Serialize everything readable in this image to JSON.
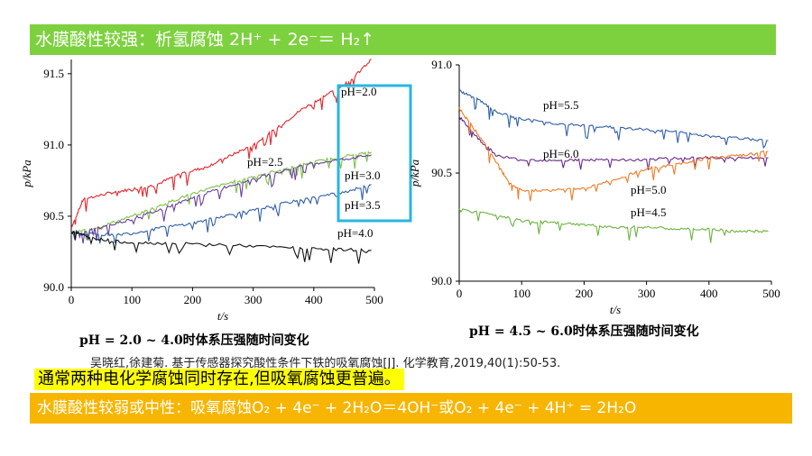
{
  "header": {
    "text": "水膜酸性较强：析氢腐蚀 2H⁺ + 2e⁻＝ H₂↑"
  },
  "citation": "吴晓红,徐建菊. 基于传感器探究酸性条件下铁的吸氧腐蚀[J]. 化学教育,2019,40(1):50-53.",
  "highlight": "通常两种电化学腐蚀同时存在,但吸氧腐蚀更普遍。",
  "footer": {
    "text": "水膜酸性较弱或中性：吸氧腐蚀O₂ + 4e⁻ + 2H₂O＝4OH⁻或O₂ + 4e⁻ + 4H⁺ = 2H₂O"
  },
  "colors": {
    "header_bg": "#7dd13f",
    "footer_bg": "#f7b500",
    "highlight_bg": "#ffff00",
    "box": "#29b6e0"
  },
  "chart_data": [
    {
      "type": "line",
      "caption": "pH = 2.0 ~ 4.0时体系压强随时间变化",
      "xlabel": "t/s",
      "ylabel": "p/kPa",
      "xlim": [
        0,
        500
      ],
      "ylim": [
        90.0,
        91.6
      ],
      "xticks": [
        0,
        100,
        200,
        300,
        400,
        500
      ],
      "yticks": [
        90.0,
        90.5,
        91.0,
        91.5
      ],
      "series": [
        {
          "name": "pH=2.0",
          "color": "#e0262b",
          "points": [
            [
              0,
              90.42
            ],
            [
              20,
              90.62
            ],
            [
              60,
              90.66
            ],
            [
              100,
              90.69
            ],
            [
              140,
              90.72
            ],
            [
              180,
              90.8
            ],
            [
              220,
              90.84
            ],
            [
              260,
              90.92
            ],
            [
              300,
              91.0
            ],
            [
              340,
              91.12
            ],
            [
              380,
              91.25
            ],
            [
              420,
              91.35
            ],
            [
              460,
              91.45
            ],
            [
              495,
              91.6
            ]
          ]
        },
        {
          "name": "pH=2.5",
          "color": "#7cc242",
          "points": [
            [
              0,
              90.38
            ],
            [
              50,
              90.43
            ],
            [
              100,
              90.5
            ],
            [
              150,
              90.58
            ],
            [
              200,
              90.66
            ],
            [
              250,
              90.72
            ],
            [
              300,
              90.78
            ],
            [
              350,
              90.83
            ],
            [
              400,
              90.88
            ],
            [
              450,
              90.92
            ],
            [
              495,
              90.95
            ]
          ]
        },
        {
          "name": "pH=3.0",
          "color": "#6a3fa0",
          "points": [
            [
              0,
              90.38
            ],
            [
              50,
              90.42
            ],
            [
              100,
              90.48
            ],
            [
              150,
              90.55
            ],
            [
              200,
              90.63
            ],
            [
              250,
              90.7
            ],
            [
              300,
              90.76
            ],
            [
              350,
              90.82
            ],
            [
              400,
              90.87
            ],
            [
              450,
              90.9
            ],
            [
              495,
              90.93
            ]
          ]
        },
        {
          "name": "pH=3.5",
          "color": "#2f5fa7",
          "points": [
            [
              0,
              90.38
            ],
            [
              50,
              90.37
            ],
            [
              100,
              90.38
            ],
            [
              150,
              90.42
            ],
            [
              200,
              90.45
            ],
            [
              250,
              90.5
            ],
            [
              300,
              90.54
            ],
            [
              350,
              90.59
            ],
            [
              400,
              90.63
            ],
            [
              450,
              90.67
            ],
            [
              495,
              90.72
            ]
          ]
        },
        {
          "name": "pH=4.0",
          "color": "#111111",
          "points": [
            [
              0,
              90.4
            ],
            [
              30,
              90.35
            ],
            [
              80,
              90.32
            ],
            [
              150,
              90.31
            ],
            [
              250,
              90.3
            ],
            [
              350,
              90.28
            ],
            [
              420,
              90.27
            ],
            [
              495,
              90.26
            ]
          ]
        }
      ]
    },
    {
      "type": "line",
      "caption": "pH = 4.5 ~ 6.0时体系压强随时间变化",
      "xlabel": "t/s",
      "ylabel": "p/kPa",
      "xlim": [
        0,
        500
      ],
      "ylim": [
        90.0,
        91.0
      ],
      "xticks": [
        0,
        100,
        200,
        300,
        400,
        500
      ],
      "yticks": [
        90.0,
        90.5,
        91.0
      ],
      "series": [
        {
          "name": "pH=5.5",
          "color": "#2f5fa7",
          "points": [
            [
              0,
              90.88
            ],
            [
              30,
              90.84
            ],
            [
              60,
              90.78
            ],
            [
              100,
              90.75
            ],
            [
              150,
              90.73
            ],
            [
              200,
              90.72
            ],
            [
              250,
              90.71
            ],
            [
              300,
              90.7
            ],
            [
              350,
              90.69
            ],
            [
              400,
              90.67
            ],
            [
              450,
              90.66
            ],
            [
              495,
              90.65
            ]
          ]
        },
        {
          "name": "pH=6.0",
          "color": "#6a2a8c",
          "points": [
            [
              0,
              90.76
            ],
            [
              30,
              90.66
            ],
            [
              60,
              90.58
            ],
            [
              100,
              90.56
            ],
            [
              150,
              90.56
            ],
            [
              200,
              90.56
            ],
            [
              250,
              90.56
            ],
            [
              300,
              90.56
            ],
            [
              350,
              90.57
            ],
            [
              400,
              90.57
            ],
            [
              450,
              90.57
            ],
            [
              495,
              90.57
            ]
          ]
        },
        {
          "name": "pH=5.0",
          "color": "#f07a23",
          "points": [
            [
              0,
              90.8
            ],
            [
              30,
              90.68
            ],
            [
              60,
              90.55
            ],
            [
              80,
              90.45
            ],
            [
              100,
              90.42
            ],
            [
              150,
              90.42
            ],
            [
              200,
              90.43
            ],
            [
              250,
              90.47
            ],
            [
              300,
              90.52
            ],
            [
              350,
              90.54
            ],
            [
              400,
              90.57
            ],
            [
              450,
              90.58
            ],
            [
              495,
              90.6
            ]
          ]
        },
        {
          "name": "pH=4.5",
          "color": "#6cb33f",
          "points": [
            [
              0,
              90.33
            ],
            [
              50,
              90.31
            ],
            [
              100,
              90.28
            ],
            [
              150,
              90.27
            ],
            [
              200,
              90.26
            ],
            [
              250,
              90.25
            ],
            [
              300,
              90.25
            ],
            [
              350,
              90.24
            ],
            [
              400,
              90.24
            ],
            [
              450,
              90.23
            ],
            [
              495,
              90.23
            ]
          ]
        }
      ]
    }
  ]
}
